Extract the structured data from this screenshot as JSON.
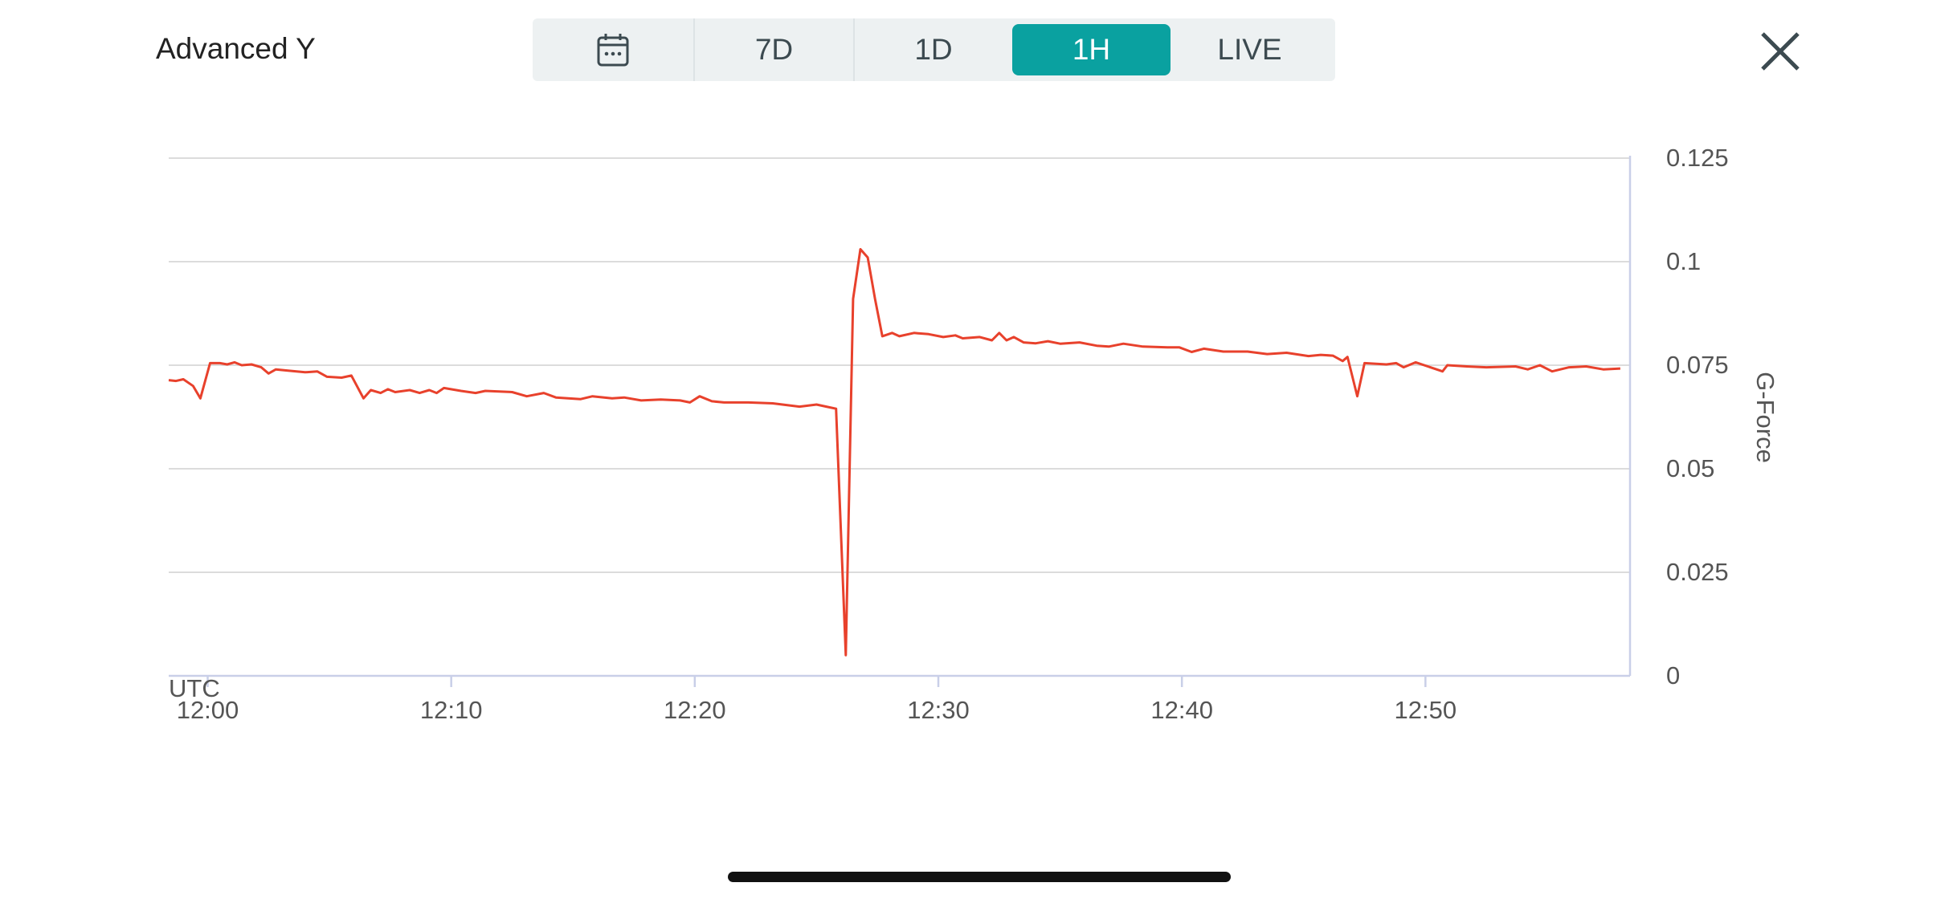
{
  "header": {
    "title": "Advanced Y",
    "tabs": [
      {
        "label": "7D"
      },
      {
        "label": "1D"
      },
      {
        "label": "1H",
        "selected": true
      },
      {
        "label": "LIVE"
      }
    ]
  },
  "chart_data": {
    "type": "line",
    "color": "#e8412c",
    "grid": true,
    "xlabel": "UTC",
    "ylabel": "G-Force",
    "xlim": [
      -1.6,
      58.4
    ],
    "xticks": [
      {
        "value": 0,
        "label": "12:00"
      },
      {
        "value": 10,
        "label": "12:10"
      },
      {
        "value": 20,
        "label": "12:20"
      },
      {
        "value": 30,
        "label": "12:30"
      },
      {
        "value": 40,
        "label": "12:40"
      },
      {
        "value": 50,
        "label": "12:50"
      }
    ],
    "ylim": [
      0,
      0.125
    ],
    "yticks": [
      0,
      0.025,
      0.05,
      0.075,
      0.1,
      0.125
    ],
    "x": [
      -1.6,
      -1.3,
      -1.0,
      -0.6,
      -0.3,
      0.1,
      0.5,
      0.8,
      1.1,
      1.4,
      1.8,
      2.2,
      2.5,
      2.8,
      3.3,
      4.0,
      4.5,
      4.9,
      5.5,
      5.9,
      6.4,
      6.7,
      7.1,
      7.4,
      7.7,
      8.3,
      8.7,
      9.1,
      9.4,
      9.7,
      10.4,
      11.0,
      11.4,
      12.5,
      13.1,
      13.8,
      14.3,
      15.3,
      15.8,
      16.6,
      17.1,
      17.8,
      18.6,
      19.4,
      19.8,
      20.2,
      20.7,
      21.2,
      22.2,
      23.2,
      24.3,
      25.0,
      25.4,
      25.8,
      26.2,
      26.5,
      26.8,
      27.1,
      27.4,
      27.7,
      28.1,
      28.4,
      29.0,
      29.6,
      30.2,
      30.7,
      31.0,
      31.7,
      32.2,
      32.5,
      32.8,
      33.1,
      33.5,
      34.0,
      34.5,
      35.0,
      35.8,
      36.5,
      37.0,
      37.6,
      38.4,
      39.4,
      39.9,
      40.4,
      40.9,
      41.7,
      42.7,
      43.5,
      44.3,
      45.2,
      45.7,
      46.2,
      46.6,
      46.8,
      47.2,
      47.5,
      48.4,
      48.8,
      49.1,
      49.6,
      50.7,
      50.9,
      51.7,
      52.5,
      53.7,
      54.2,
      54.7,
      55.2,
      55.9,
      56.6,
      57.3,
      58.0
    ],
    "values": [
      0.0714,
      0.0712,
      0.0716,
      0.07,
      0.067,
      0.0755,
      0.0755,
      0.0752,
      0.0757,
      0.075,
      0.0752,
      0.0745,
      0.073,
      0.074,
      0.0737,
      0.0733,
      0.0735,
      0.0722,
      0.072,
      0.0725,
      0.067,
      0.069,
      0.0683,
      0.0692,
      0.0685,
      0.069,
      0.0683,
      0.069,
      0.0683,
      0.0695,
      0.0688,
      0.0683,
      0.0688,
      0.0685,
      0.0675,
      0.0683,
      0.0672,
      0.0668,
      0.0675,
      0.067,
      0.0672,
      0.0665,
      0.0667,
      0.0665,
      0.066,
      0.0675,
      0.0663,
      0.066,
      0.066,
      0.0658,
      0.065,
      0.0655,
      0.065,
      0.0645,
      0.005,
      0.091,
      0.103,
      0.101,
      0.091,
      0.082,
      0.0828,
      0.082,
      0.0828,
      0.0825,
      0.0818,
      0.0822,
      0.0815,
      0.0818,
      0.081,
      0.0828,
      0.081,
      0.0818,
      0.0805,
      0.0803,
      0.0808,
      0.0802,
      0.0805,
      0.0797,
      0.0795,
      0.0802,
      0.0795,
      0.0793,
      0.0793,
      0.0782,
      0.079,
      0.0783,
      0.0783,
      0.0777,
      0.078,
      0.0772,
      0.0775,
      0.0773,
      0.076,
      0.077,
      0.0675,
      0.0755,
      0.0752,
      0.0755,
      0.0745,
      0.0757,
      0.0735,
      0.075,
      0.0747,
      0.0745,
      0.0747,
      0.074,
      0.075,
      0.0735,
      0.0745,
      0.0747,
      0.074,
      0.0742
    ]
  }
}
